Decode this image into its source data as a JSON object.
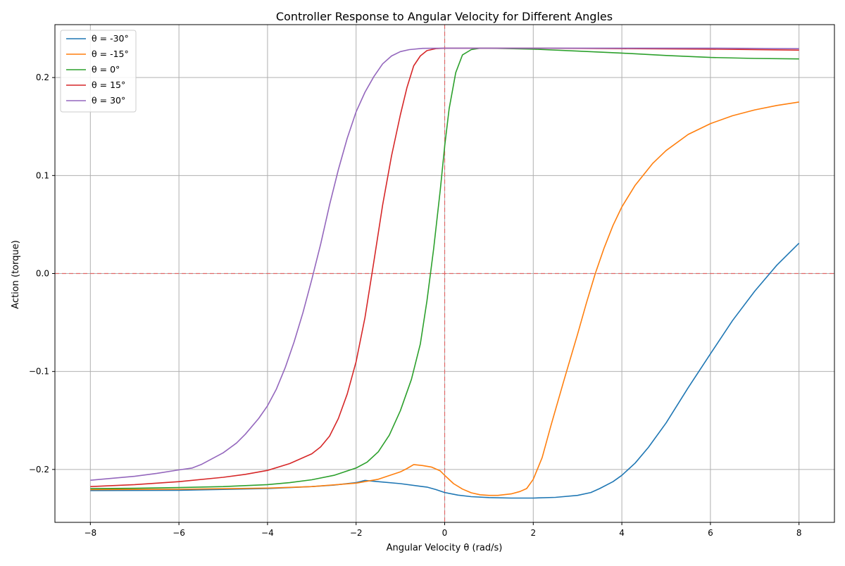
{
  "chart_data": {
    "type": "line",
    "title": "Controller Response to Angular Velocity for Different Angles",
    "xlabel": "Angular Velocity θ (rad/s)",
    "ylabel": "Action (torque)",
    "xlim": [
      -8.8,
      8.8
    ],
    "ylim": [
      -0.254,
      0.254
    ],
    "xticks": [
      -8,
      -6,
      -4,
      -2,
      0,
      2,
      4,
      6,
      8
    ],
    "xtick_labels": [
      "−8",
      "−6",
      "−4",
      "−2",
      "0",
      "2",
      "4",
      "6",
      "8"
    ],
    "yticks": [
      -0.2,
      -0.1,
      0.0,
      0.1,
      0.2
    ],
    "ytick_labels": [
      "−0.2",
      "−0.1",
      "0.0",
      "0.1",
      "0.2"
    ],
    "grid": true,
    "legend_position": "top-left",
    "reference_lines": {
      "vertical_x": 0,
      "horizontal_y": 0,
      "color": "#e06666"
    },
    "series": [
      {
        "name": "θ = -30°",
        "color": "#1f77b4",
        "points": [
          [
            -8,
            -0.2215
          ],
          [
            -6,
            -0.2212
          ],
          [
            -4,
            -0.2195
          ],
          [
            -3,
            -0.2175
          ],
          [
            -2.5,
            -0.216
          ],
          [
            -2,
            -0.2135
          ],
          [
            -1.8,
            -0.2112
          ],
          [
            -1.5,
            -0.2125
          ],
          [
            -1,
            -0.2145
          ],
          [
            -0.5,
            -0.2175
          ],
          [
            -0.4,
            -0.218
          ],
          [
            -0.2,
            -0.2205
          ],
          [
            0,
            -0.2235
          ],
          [
            0.3,
            -0.2262
          ],
          [
            0.6,
            -0.2278
          ],
          [
            1,
            -0.2287
          ],
          [
            1.5,
            -0.2292
          ],
          [
            2,
            -0.2292
          ],
          [
            2.5,
            -0.2285
          ],
          [
            3,
            -0.2265
          ],
          [
            3.3,
            -0.2235
          ],
          [
            3.5,
            -0.2195
          ],
          [
            3.8,
            -0.2125
          ],
          [
            4,
            -0.206
          ],
          [
            4.3,
            -0.1935
          ],
          [
            4.6,
            -0.1775
          ],
          [
            5,
            -0.1525
          ],
          [
            5.5,
            -0.1165
          ],
          [
            6,
            -0.082
          ],
          [
            6.5,
            -0.048
          ],
          [
            7,
            -0.018
          ],
          [
            7.5,
            0.0085
          ],
          [
            8,
            0.031
          ]
        ]
      },
      {
        "name": "θ = -15°",
        "color": "#ff7f0e",
        "points": [
          [
            -8,
            -0.2205
          ],
          [
            -6,
            -0.2202
          ],
          [
            -4,
            -0.219
          ],
          [
            -3,
            -0.2175
          ],
          [
            -2,
            -0.214
          ],
          [
            -1.5,
            -0.21
          ],
          [
            -1,
            -0.2025
          ],
          [
            -0.85,
            -0.199
          ],
          [
            -0.7,
            -0.195
          ],
          [
            -0.5,
            -0.196
          ],
          [
            -0.3,
            -0.1975
          ],
          [
            -0.1,
            -0.2015
          ],
          [
            0,
            -0.206
          ],
          [
            0.2,
            -0.2145
          ],
          [
            0.4,
            -0.22
          ],
          [
            0.6,
            -0.2238
          ],
          [
            0.8,
            -0.2258
          ],
          [
            1,
            -0.2265
          ],
          [
            1.2,
            -0.2265
          ],
          [
            1.5,
            -0.225
          ],
          [
            1.7,
            -0.2225
          ],
          [
            1.85,
            -0.2195
          ],
          [
            2,
            -0.21
          ],
          [
            2.2,
            -0.188
          ],
          [
            2.4,
            -0.155
          ],
          [
            2.7,
            -0.108
          ],
          [
            3,
            -0.062
          ],
          [
            3.2,
            -0.03
          ],
          [
            3.4,
            0.0
          ],
          [
            3.6,
            0.026
          ],
          [
            3.8,
            0.049
          ],
          [
            4,
            0.068
          ],
          [
            4.3,
            0.09
          ],
          [
            4.7,
            0.1125
          ],
          [
            5,
            0.1255
          ],
          [
            5.5,
            0.142
          ],
          [
            6,
            0.153
          ],
          [
            6.5,
            0.161
          ],
          [
            7,
            0.167
          ],
          [
            7.5,
            0.1715
          ],
          [
            8,
            0.175
          ]
        ]
      },
      {
        "name": "θ = 0°",
        "color": "#2ca02c",
        "points": [
          [
            -8,
            -0.2195
          ],
          [
            -7,
            -0.2192
          ],
          [
            -6,
            -0.2185
          ],
          [
            -5,
            -0.2175
          ],
          [
            -4,
            -0.2155
          ],
          [
            -3.5,
            -0.2135
          ],
          [
            -3,
            -0.2105
          ],
          [
            -2.5,
            -0.206
          ],
          [
            -2,
            -0.1985
          ],
          [
            -1.75,
            -0.1925
          ],
          [
            -1.5,
            -0.182
          ],
          [
            -1.25,
            -0.165
          ],
          [
            -1,
            -0.14
          ],
          [
            -0.75,
            -0.108
          ],
          [
            -0.55,
            -0.072
          ],
          [
            -0.4,
            -0.028
          ],
          [
            -0.25,
            0.025
          ],
          [
            -0.1,
            0.085
          ],
          [
            0,
            0.13
          ],
          [
            0.1,
            0.168
          ],
          [
            0.25,
            0.205
          ],
          [
            0.4,
            0.223
          ],
          [
            0.6,
            0.2285
          ],
          [
            0.8,
            0.23
          ],
          [
            1,
            0.23
          ],
          [
            2,
            0.229
          ],
          [
            3,
            0.227
          ],
          [
            4,
            0.225
          ],
          [
            5,
            0.2225
          ],
          [
            6,
            0.2205
          ],
          [
            7,
            0.2195
          ],
          [
            8,
            0.219
          ]
        ]
      },
      {
        "name": "θ = 15°",
        "color": "#d62728",
        "points": [
          [
            -8,
            -0.2175
          ],
          [
            -7,
            -0.2155
          ],
          [
            -6,
            -0.2125
          ],
          [
            -5,
            -0.208
          ],
          [
            -4.5,
            -0.205
          ],
          [
            -4,
            -0.201
          ],
          [
            -3.5,
            -0.194
          ],
          [
            -3,
            -0.184
          ],
          [
            -2.8,
            -0.177
          ],
          [
            -2.6,
            -0.166
          ],
          [
            -2.4,
            -0.148
          ],
          [
            -2.2,
            -0.123
          ],
          [
            -2,
            -0.09
          ],
          [
            -1.8,
            -0.045
          ],
          [
            -1.6,
            0.012
          ],
          [
            -1.4,
            0.07
          ],
          [
            -1.2,
            0.12
          ],
          [
            -1,
            0.162
          ],
          [
            -0.85,
            0.19
          ],
          [
            -0.7,
            0.212
          ],
          [
            -0.55,
            0.222
          ],
          [
            -0.4,
            0.2275
          ],
          [
            -0.2,
            0.2295
          ],
          [
            0,
            0.23
          ],
          [
            1,
            0.23
          ],
          [
            2,
            0.23
          ],
          [
            4,
            0.2295
          ],
          [
            6,
            0.229
          ],
          [
            8,
            0.228
          ]
        ]
      },
      {
        "name": "θ = 30°",
        "color": "#9467bd",
        "points": [
          [
            -8,
            -0.211
          ],
          [
            -7,
            -0.207
          ],
          [
            -6.5,
            -0.204
          ],
          [
            -6,
            -0.2005
          ],
          [
            -5.7,
            -0.1985
          ],
          [
            -5.5,
            -0.195
          ],
          [
            -5,
            -0.183
          ],
          [
            -4.7,
            -0.173
          ],
          [
            -4.5,
            -0.164
          ],
          [
            -4.2,
            -0.148
          ],
          [
            -4,
            -0.135
          ],
          [
            -3.8,
            -0.118
          ],
          [
            -3.6,
            -0.096
          ],
          [
            -3.4,
            -0.07
          ],
          [
            -3.2,
            -0.04
          ],
          [
            -3,
            -0.006
          ],
          [
            -2.8,
            0.03
          ],
          [
            -2.6,
            0.07
          ],
          [
            -2.4,
            0.106
          ],
          [
            -2.2,
            0.138
          ],
          [
            -2,
            0.165
          ],
          [
            -1.8,
            0.185
          ],
          [
            -1.6,
            0.201
          ],
          [
            -1.4,
            0.214
          ],
          [
            -1.2,
            0.222
          ],
          [
            -1,
            0.2265
          ],
          [
            -0.8,
            0.2285
          ],
          [
            -0.5,
            0.2298
          ],
          [
            0,
            0.23
          ],
          [
            2,
            0.23
          ],
          [
            4,
            0.23
          ],
          [
            6,
            0.23
          ],
          [
            8,
            0.2295
          ]
        ]
      }
    ]
  }
}
